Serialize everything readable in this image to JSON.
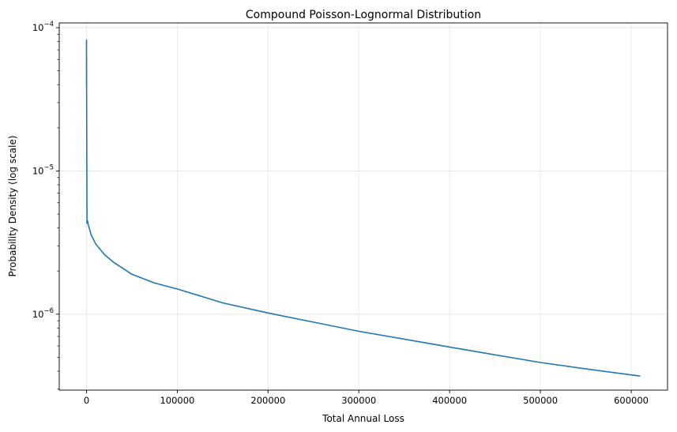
{
  "chart_data": {
    "type": "line",
    "title": "Compound Poisson-Lognormal Distribution",
    "xlabel": "Total Annual Loss",
    "ylabel": "Probability Density (log scale)",
    "xlim": [
      -30000,
      640000
    ],
    "ylim": [
      2.95e-07,
      0.000108
    ],
    "y_scale": "log",
    "grid": true,
    "series_color": "#1f77b4",
    "x_ticks": [
      0,
      100000,
      200000,
      300000,
      400000,
      500000,
      600000
    ],
    "x_tick_labels": [
      "0",
      "100000",
      "200000",
      "300000",
      "400000",
      "500000",
      "600000"
    ],
    "y_ticks": [
      1e-06,
      1e-05,
      0.0001
    ],
    "y_tick_labels": [
      {
        "base": "10",
        "exp": "−6"
      },
      {
        "base": "10",
        "exp": "−5"
      },
      {
        "base": "10",
        "exp": "−4"
      }
    ],
    "series": [
      {
        "x": [
          0,
          0,
          500,
          1000,
          1500,
          2000,
          3000,
          5000,
          10000,
          20000,
          30000,
          50000,
          75000,
          100000,
          150000,
          200000,
          250000,
          300000,
          350000,
          400000,
          450000,
          500000,
          550000,
          610000
        ],
        "y": [
          4e-05,
          8.2e-05,
          4.3e-06,
          4.5e-06,
          4.4e-06,
          4.2e-06,
          4e-06,
          3.6e-06,
          3.1e-06,
          2.6e-06,
          2.3e-06,
          1.9e-06,
          1.65e-06,
          1.5e-06,
          1.2e-06,
          1.02e-06,
          8.8e-07,
          7.6e-07,
          6.7e-07,
          5.9e-07,
          5.2e-07,
          4.6e-07,
          4.15e-07,
          3.7e-07
        ]
      }
    ]
  }
}
